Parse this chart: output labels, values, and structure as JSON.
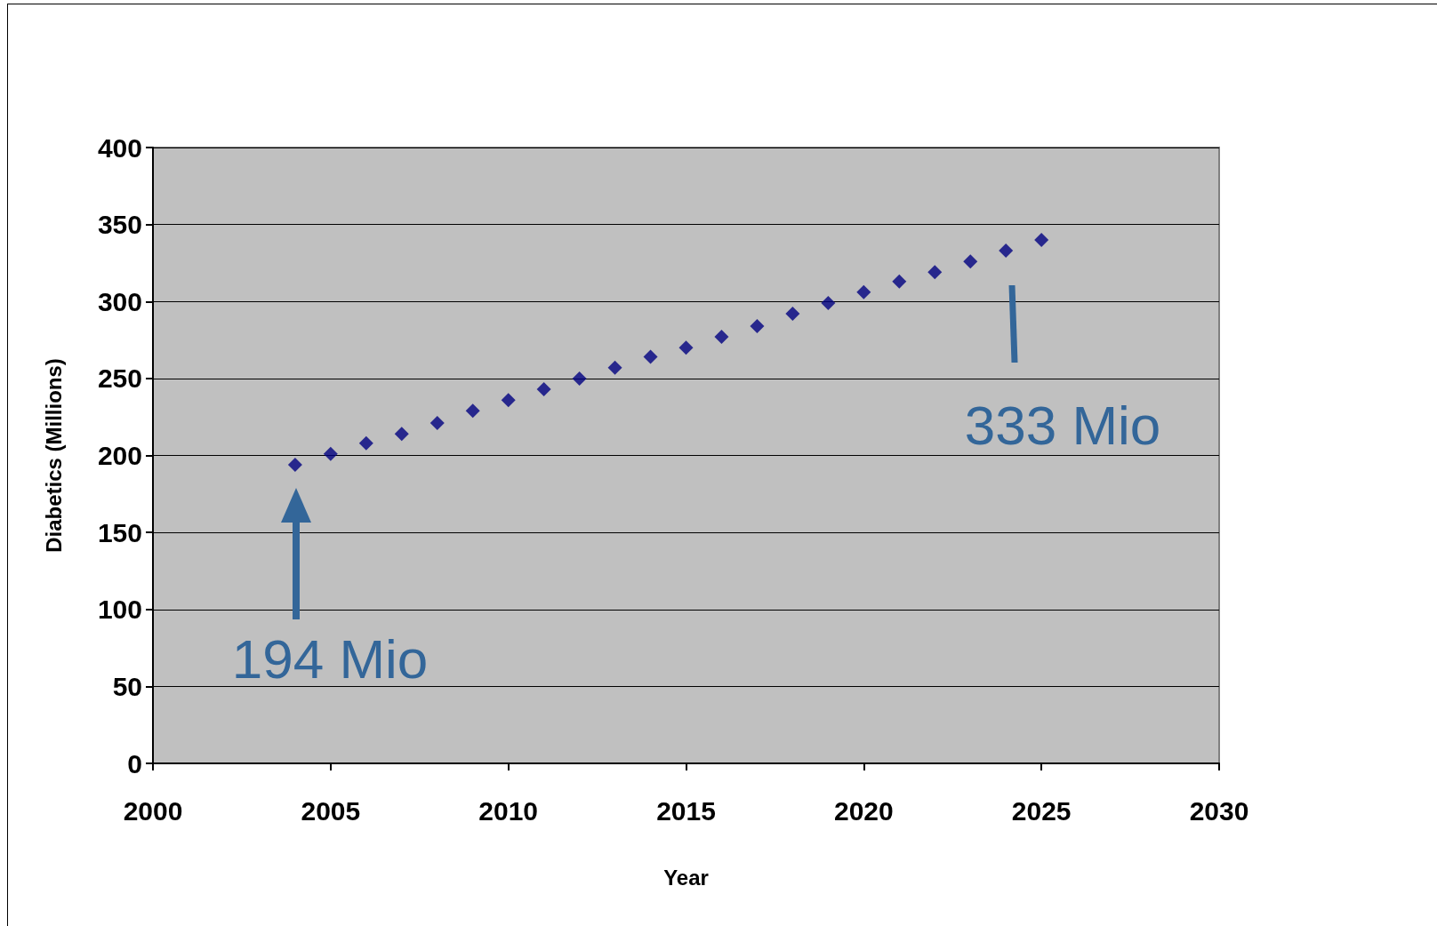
{
  "chart_data": {
    "type": "scatter",
    "xlabel": "Year",
    "ylabel": "Diabetics (Millions)",
    "x": [
      2004,
      2005,
      2006,
      2007,
      2008,
      2009,
      2010,
      2011,
      2012,
      2013,
      2014,
      2015,
      2016,
      2017,
      2018,
      2019,
      2020,
      2021,
      2022,
      2023,
      2024,
      2025
    ],
    "series": [
      {
        "color": "#000080",
        "values": [
          194,
          201,
          208,
          214,
          221,
          229,
          236,
          243,
          250,
          257,
          264,
          270,
          277,
          284,
          292,
          299,
          306,
          313,
          319,
          326,
          333,
          340
        ]
      }
    ],
    "xlim": [
      2000,
      2030
    ],
    "xticks": [
      2000,
      2005,
      2010,
      2015,
      2020,
      2025,
      2030
    ],
    "ylim": [
      0,
      400
    ],
    "yticks": [
      0,
      50,
      100,
      150,
      200,
      250,
      300,
      350,
      400
    ],
    "grid": "y",
    "marker": "diamond",
    "annotations": [
      "194 Mio",
      "333 Mio"
    ]
  }
}
